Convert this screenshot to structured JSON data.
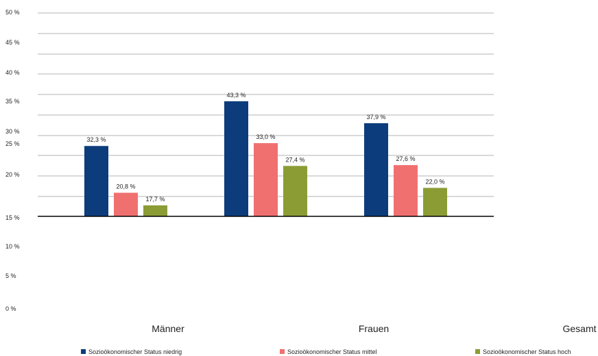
{
  "chart_data": {
    "type": "bar",
    "categories": [
      "Männer",
      "Frauen",
      "Gesamt"
    ],
    "series": [
      {
        "name": "Sozioökonomischer Status niedrig",
        "color": "#0c3c7c",
        "values": [
          32.3,
          43.3,
          37.9
        ],
        "labels": [
          "32,3 %",
          "43,3 %",
          "37,9 %"
        ]
      },
      {
        "name": "Sozioökonomischer Status mittel",
        "color": "#f07070",
        "values": [
          20.8,
          33.0,
          27.6
        ],
        "labels": [
          "20,8 %",
          "33,0 %",
          "27,6 %"
        ]
      },
      {
        "name": "Sozioökonomischer Status hoch",
        "color": "#8b9c35",
        "values": [
          17.7,
          27.4,
          22.0
        ],
        "labels": [
          "17,7 %",
          "27,4 %",
          "22,0 %"
        ]
      }
    ],
    "y_ticks": [
      {
        "label": "50 %",
        "value": 50
      },
      {
        "label": "45 %",
        "value": 45
      },
      {
        "label": "40 %",
        "value": 40
      },
      {
        "label": "35 %",
        "value": 35
      },
      {
        "label": "30 %",
        "value": 30
      },
      {
        "label": "25 %",
        "value": 25
      },
      {
        "label": "20 %",
        "value": 20
      },
      {
        "label": "15 %",
        "value": 15
      },
      {
        "label": "10 %",
        "value": 10
      },
      {
        "label": "5 %",
        "value": 5
      },
      {
        "label": "0 %",
        "value": 0
      }
    ],
    "grid": true,
    "legend_position": "bottom"
  }
}
